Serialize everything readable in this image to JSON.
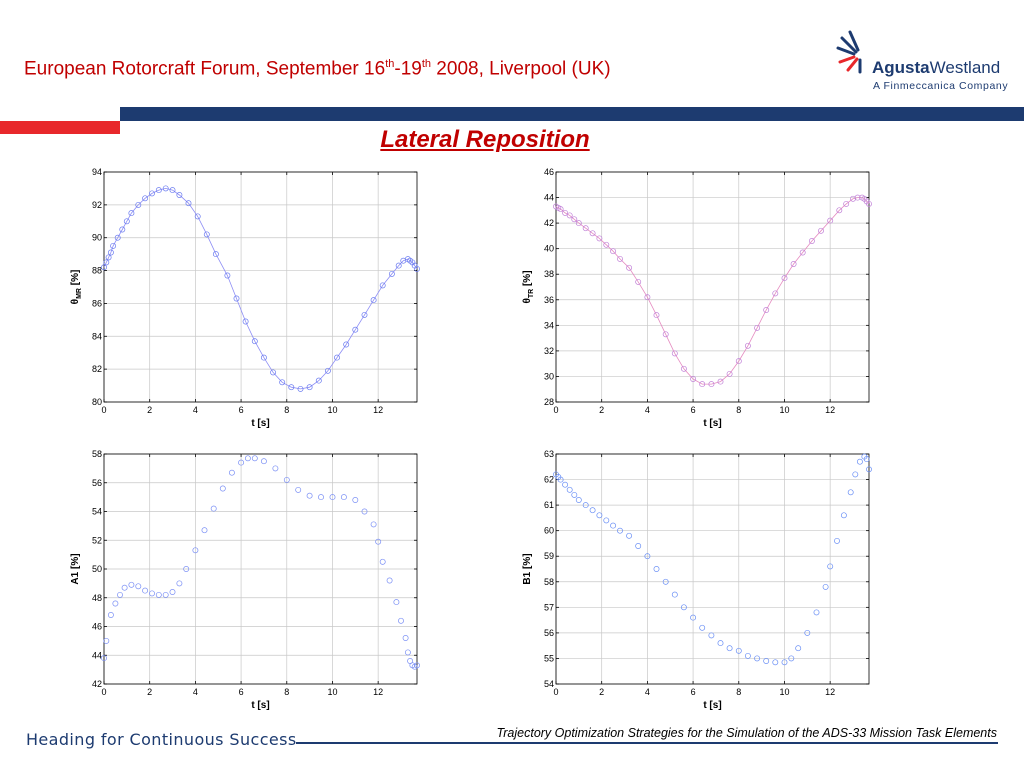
{
  "header": {
    "title_a": "European Rotorcraft Forum, September 16",
    "sup1": "th",
    "title_b": "-19",
    "sup2": "th",
    "title_c": " 2008, Liverpool (UK)"
  },
  "logo": {
    "name_a": "Agusta",
    "name_b": "Westland",
    "subtitle": "A Finmeccanica Company"
  },
  "slide_title": "Lateral Reposition",
  "footer": {
    "left": "Heading for Continuous Success",
    "right": "Trajectory Optimization Strategies for the Simulation of the ADS-33 Mission Task Elements"
  },
  "colors": {
    "header_red": "#c00000",
    "navy": "#1d3b70",
    "accent_red": "#e8282b",
    "series_blue": "#6a7bf0",
    "series_red_mix": "#c080d8"
  },
  "chart_data": [
    {
      "type": "line",
      "xlabel": "t [s]",
      "ylabel": "θMR [%]",
      "ylabel_main": "θ",
      "ylabel_sub": "MR",
      "ylabel_unit": " [%]",
      "xlim": [
        0,
        13.7
      ],
      "ylim": [
        80,
        94
      ],
      "xticks": [
        0,
        2,
        4,
        6,
        8,
        10,
        12
      ],
      "yticks": [
        80,
        82,
        84,
        86,
        88,
        90,
        92,
        94
      ],
      "grid": true,
      "series": [
        {
          "x": [
            0,
            0.1,
            0.2,
            0.3,
            0.4,
            0.6,
            0.8,
            1.0,
            1.2,
            1.5,
            1.8,
            2.1,
            2.4,
            2.7,
            3.0,
            3.3,
            3.7,
            4.1,
            4.5,
            4.9,
            5.4,
            5.8,
            6.2,
            6.6,
            7.0,
            7.4,
            7.8,
            8.2,
            8.6,
            9.0,
            9.4,
            9.8,
            10.2,
            10.6,
            11.0,
            11.4,
            11.8,
            12.2,
            12.6,
            12.9,
            13.1,
            13.3,
            13.4,
            13.5,
            13.6,
            13.7
          ],
          "y": [
            88.2,
            88.5,
            88.8,
            89.1,
            89.5,
            90.0,
            90.5,
            91.0,
            91.5,
            92.0,
            92.4,
            92.7,
            92.9,
            93.0,
            92.9,
            92.6,
            92.1,
            91.3,
            90.2,
            89.0,
            87.7,
            86.3,
            84.9,
            83.7,
            82.7,
            81.8,
            81.2,
            80.9,
            80.8,
            80.9,
            81.3,
            81.9,
            82.7,
            83.5,
            84.4,
            85.3,
            86.2,
            87.1,
            87.8,
            88.3,
            88.6,
            88.7,
            88.6,
            88.5,
            88.3,
            88.1
          ]
        }
      ]
    },
    {
      "type": "line",
      "xlabel": "t [s]",
      "ylabel": "θTR [%]",
      "ylabel_main": "θ",
      "ylabel_sub": "TR",
      "ylabel_unit": " [%]",
      "xlim": [
        0,
        13.7
      ],
      "ylim": [
        28,
        46
      ],
      "xticks": [
        0,
        2,
        4,
        6,
        8,
        10,
        12
      ],
      "yticks": [
        28,
        30,
        32,
        34,
        36,
        38,
        40,
        42,
        44,
        46
      ],
      "grid": true,
      "series": [
        {
          "x": [
            0,
            0.1,
            0.2,
            0.4,
            0.6,
            0.8,
            1.0,
            1.3,
            1.6,
            1.9,
            2.2,
            2.5,
            2.8,
            3.2,
            3.6,
            4.0,
            4.4,
            4.8,
            5.2,
            5.6,
            6.0,
            6.4,
            6.8,
            7.2,
            7.6,
            8.0,
            8.4,
            8.8,
            9.2,
            9.6,
            10.0,
            10.4,
            10.8,
            11.2,
            11.6,
            12.0,
            12.4,
            12.7,
            13.0,
            13.2,
            13.4,
            13.5,
            13.6,
            13.7
          ],
          "y": [
            43.3,
            43.2,
            43.1,
            42.8,
            42.6,
            42.3,
            42.0,
            41.6,
            41.2,
            40.8,
            40.3,
            39.8,
            39.2,
            38.5,
            37.4,
            36.2,
            34.8,
            33.3,
            31.8,
            30.6,
            29.8,
            29.4,
            29.4,
            29.6,
            30.2,
            31.2,
            32.4,
            33.8,
            35.2,
            36.5,
            37.7,
            38.8,
            39.7,
            40.6,
            41.4,
            42.2,
            43.0,
            43.5,
            43.9,
            44.0,
            44.0,
            43.9,
            43.7,
            43.5
          ]
        }
      ]
    },
    {
      "type": "scatter",
      "xlabel": "t [s]",
      "ylabel": "A1 [%]",
      "xlim": [
        0,
        13.7
      ],
      "ylim": [
        42,
        58
      ],
      "xticks": [
        0,
        2,
        4,
        6,
        8,
        10,
        12
      ],
      "yticks": [
        42,
        44,
        46,
        48,
        50,
        52,
        54,
        56,
        58
      ],
      "grid": true,
      "series": [
        {
          "x": [
            0,
            0.1,
            0.3,
            0.5,
            0.7,
            0.9,
            1.2,
            1.5,
            1.8,
            2.1,
            2.4,
            2.7,
            3.0,
            3.3,
            3.6,
            4.0,
            4.4,
            4.8,
            5.2,
            5.6,
            6.0,
            6.3,
            6.6,
            7.0,
            7.5,
            8.0,
            8.5,
            9.0,
            9.5,
            10.0,
            10.5,
            11.0,
            11.4,
            11.8,
            12.0,
            12.2,
            12.5,
            12.8,
            13.0,
            13.2,
            13.3,
            13.4,
            13.5,
            13.6,
            13.7
          ],
          "y": [
            43.8,
            45.0,
            46.8,
            47.6,
            48.2,
            48.7,
            48.9,
            48.8,
            48.5,
            48.3,
            48.2,
            48.2,
            48.4,
            49.0,
            50.0,
            51.3,
            52.7,
            54.2,
            55.6,
            56.7,
            57.4,
            57.7,
            57.7,
            57.5,
            57.0,
            56.2,
            55.5,
            55.1,
            55.0,
            55.0,
            55.0,
            54.8,
            54.0,
            53.1,
            51.9,
            50.5,
            49.2,
            47.7,
            46.4,
            45.2,
            44.2,
            43.6,
            43.3,
            43.2,
            43.3
          ]
        }
      ]
    },
    {
      "type": "scatter",
      "xlabel": "t [s]",
      "ylabel": "B1 [%]",
      "xlim": [
        0,
        13.7
      ],
      "ylim": [
        54,
        63
      ],
      "xticks": [
        0,
        2,
        4,
        6,
        8,
        10,
        12
      ],
      "yticks": [
        54,
        55,
        56,
        57,
        58,
        59,
        60,
        61,
        62,
        63
      ],
      "grid": true,
      "series": [
        {
          "x": [
            0,
            0.1,
            0.2,
            0.4,
            0.6,
            0.8,
            1.0,
            1.3,
            1.6,
            1.9,
            2.2,
            2.5,
            2.8,
            3.2,
            3.6,
            4.0,
            4.4,
            4.8,
            5.2,
            5.6,
            6.0,
            6.4,
            6.8,
            7.2,
            7.6,
            8.0,
            8.4,
            8.8,
            9.2,
            9.6,
            10.0,
            10.3,
            10.6,
            11.0,
            11.4,
            11.8,
            12.0,
            12.3,
            12.6,
            12.9,
            13.1,
            13.3,
            13.5,
            13.6,
            13.7
          ],
          "y": [
            62.2,
            62.1,
            62.0,
            61.8,
            61.6,
            61.4,
            61.2,
            61.0,
            60.8,
            60.6,
            60.4,
            60.2,
            60.0,
            59.8,
            59.4,
            59.0,
            58.5,
            58.0,
            57.5,
            57.0,
            56.6,
            56.2,
            55.9,
            55.6,
            55.4,
            55.3,
            55.1,
            55.0,
            54.9,
            54.85,
            54.85,
            55.0,
            55.4,
            56.0,
            56.8,
            57.8,
            58.6,
            59.6,
            60.6,
            61.5,
            62.2,
            62.7,
            62.9,
            62.8,
            62.4
          ]
        }
      ]
    }
  ]
}
